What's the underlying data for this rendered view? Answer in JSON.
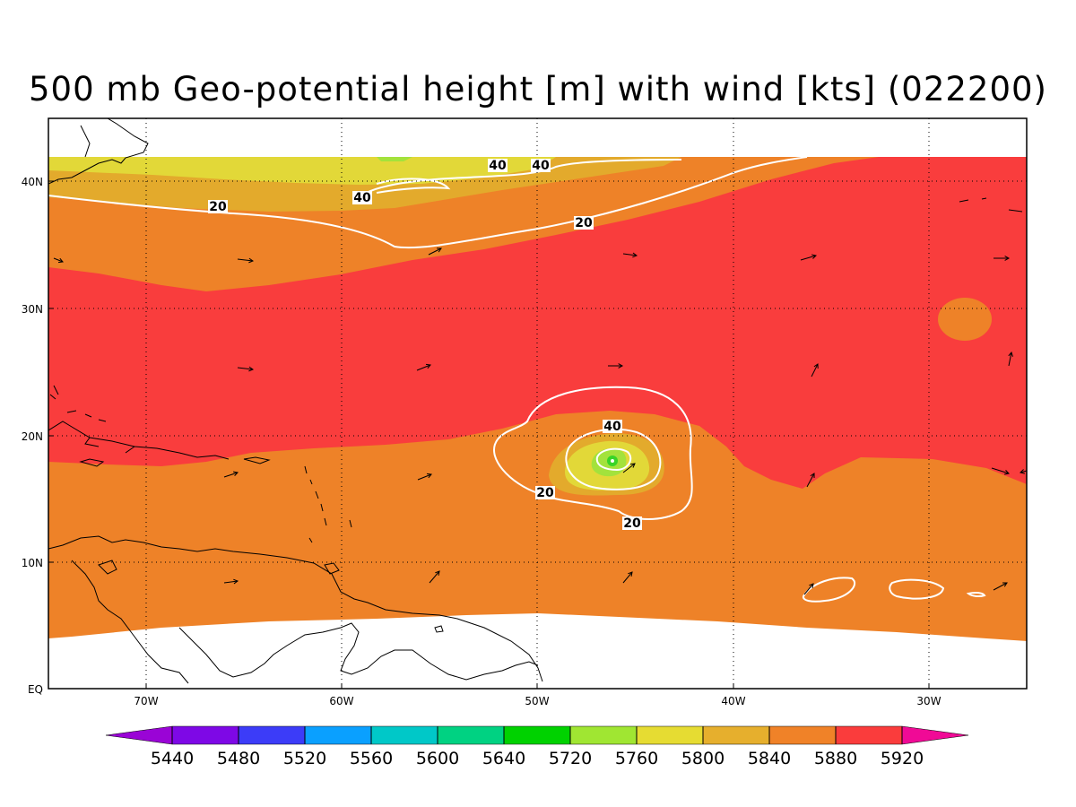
{
  "title": "500 mb Geo-potential height [m] with wind [kts] (022200)",
  "map": {
    "lon_labels": [
      "70W",
      "60W",
      "50W",
      "40W",
      "30W"
    ],
    "lat_labels": [
      "40N",
      "30N",
      "20N",
      "10N",
      "EQ"
    ],
    "fill_colors": {
      "5800": "#e2d838",
      "5840": "#e3aa2c",
      "5880": "#ee8228",
      "5920": "#f93d3d",
      "5760": "#a3e23c",
      "5720": "#38d428"
    },
    "contour_labels": [
      "40",
      "40",
      "40",
      "20",
      "20",
      "40",
      "20",
      "20"
    ]
  },
  "colorbar": {
    "colors": [
      "#9a04d6",
      "#7e08e6",
      "#3c3cf8",
      "#0aa0ff",
      "#00c8c8",
      "#00d282",
      "#00d200",
      "#a0e632",
      "#e6dc32",
      "#e6af2d",
      "#f08228",
      "#fa3c3c",
      "#f00a96"
    ],
    "labels": [
      "5440",
      "5480",
      "5520",
      "5560",
      "5600",
      "5640",
      "5720",
      "5760",
      "5800",
      "5840",
      "5880",
      "5920"
    ]
  }
}
